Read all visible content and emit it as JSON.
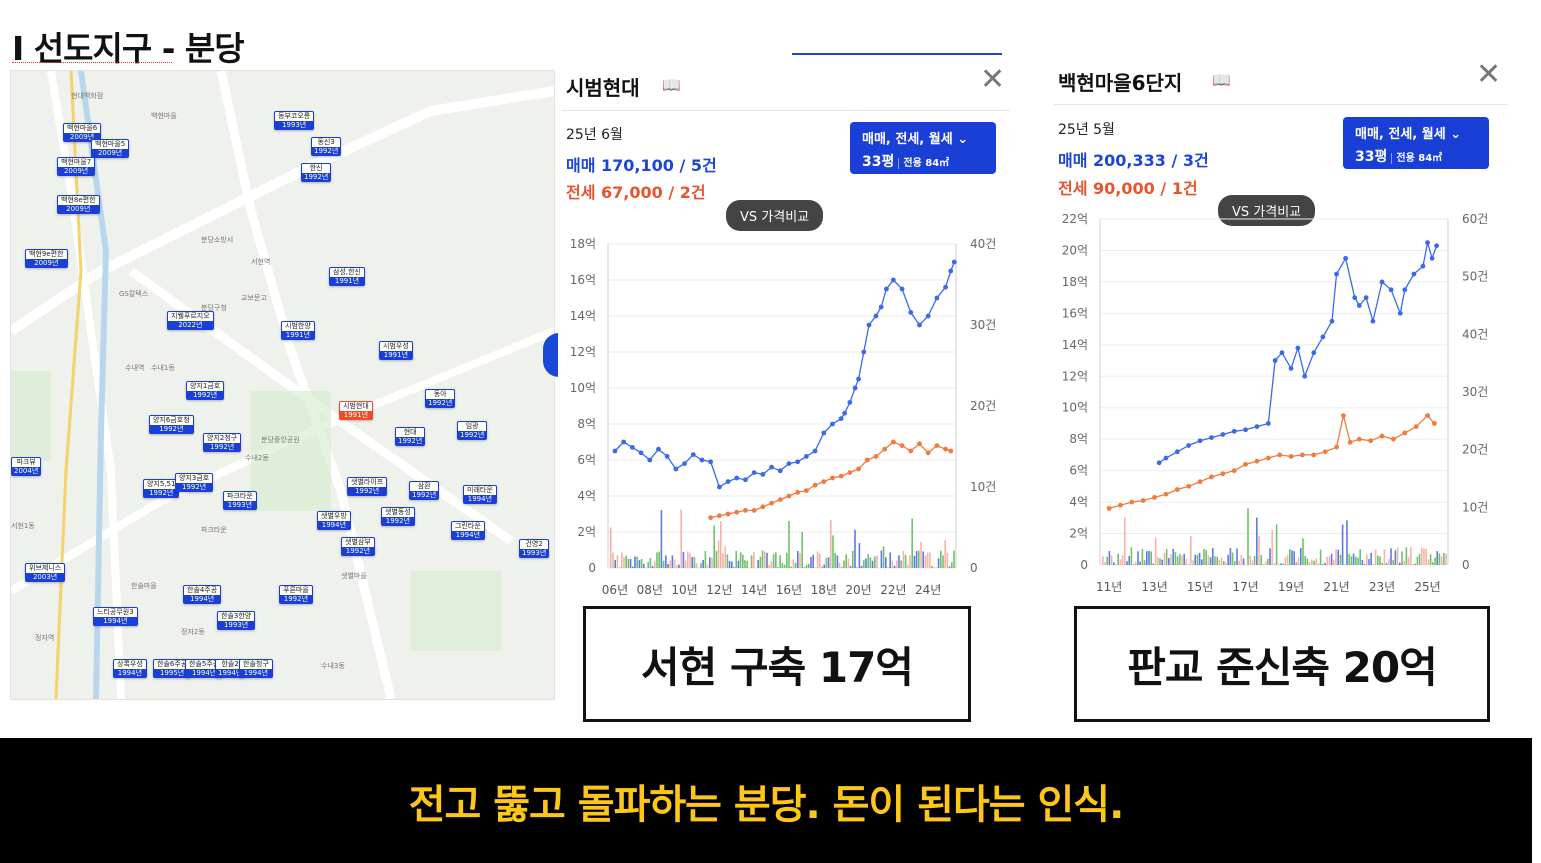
{
  "slide": {
    "title": "I 선도지구 - 분당",
    "banner": "전고 뚫고 돌파하는 분당. 돈이 된다는 인식."
  },
  "map": {
    "markers": [
      {
        "name": "백현마을6",
        "year": "2009년"
      },
      {
        "name": "백현마을5",
        "year": "2009년"
      },
      {
        "name": "백현마을7",
        "year": "2009년"
      },
      {
        "name": "백현8e편한",
        "year": "2009년"
      },
      {
        "name": "백현9e편한",
        "year": "2009년"
      },
      {
        "name": "동부코오롱",
        "year": "1993년"
      },
      {
        "name": "동신3",
        "year": "1992년"
      },
      {
        "name": "한신",
        "year": "1992년"
      },
      {
        "name": "삼성,한신",
        "year": "1991년"
      },
      {
        "name": "지웰푸르지오",
        "year": "2022년"
      },
      {
        "name": "시범한양",
        "year": "1991년"
      },
      {
        "name": "시범우성",
        "year": "1991년"
      },
      {
        "name": "양지1금호",
        "year": "1992년"
      },
      {
        "name": "양지6금호청",
        "year": "1992년"
      },
      {
        "name": "양지2청구",
        "year": "1992년"
      },
      {
        "name": "시범현대",
        "year": "1991년"
      },
      {
        "name": "동아",
        "year": "1992년"
      },
      {
        "name": "현대",
        "year": "1992년"
      },
      {
        "name": "임광",
        "year": "1992년"
      },
      {
        "name": "파크뷰",
        "year": "2004년"
      },
      {
        "name": "양지5,51",
        "year": "1992년"
      },
      {
        "name": "양지3금호",
        "year": "1992년"
      },
      {
        "name": "파크타운",
        "year": "1993년"
      },
      {
        "name": "샛별라이프",
        "year": "1992년"
      },
      {
        "name": "삼환",
        "year": "1992년"
      },
      {
        "name": "미래타운",
        "year": "1994년"
      },
      {
        "name": "샛별동성",
        "year": "1992년"
      },
      {
        "name": "샛별우방",
        "year": "1994년"
      },
      {
        "name": "샛별삼부",
        "year": "1992년"
      },
      {
        "name": "그린타운",
        "year": "1994년"
      },
      {
        "name": "건영2",
        "year": "1993년"
      },
      {
        "name": "위브제니스",
        "year": "2003년"
      },
      {
        "name": "한솔4주공",
        "year": "1994년"
      },
      {
        "name": "푸른마을",
        "year": "1992년"
      },
      {
        "name": "느티공무원3",
        "year": "1994년"
      },
      {
        "name": "한솔3한양",
        "year": "1993년"
      },
      {
        "name": "상록우성",
        "year": "1994년"
      },
      {
        "name": "한솔6주공",
        "year": "1995년"
      },
      {
        "name": "한솔5주공",
        "year": "1994년"
      },
      {
        "name": "한솔2",
        "year": "1994년"
      },
      {
        "name": "한솔청구",
        "year": "1994년"
      }
    ],
    "labels": [
      "현대백화점",
      "백현마을",
      "서현역",
      "교보문고",
      "분당구청",
      "수내1동",
      "수내역",
      "분당중앙공원",
      "수내2동",
      "한솔마을",
      "정자2동",
      "정자역",
      "수내3동",
      "분당소방서",
      "GS칼텍스",
      "파크타운",
      "샛별마을",
      "서현1동"
    ]
  },
  "left_panel": {
    "title": "시범현대",
    "date": "25년 6월",
    "sale": "매매 170,100 / 5건",
    "rent": "전세 67,000 / 2건",
    "filter_line1": "매매, 전세, 월세",
    "filter_size": "33평",
    "filter_area": "전용 84㎡",
    "vs_label": "VS 가격비교",
    "caption": "서현 구축 17억"
  },
  "right_panel": {
    "title": "백현마을6단지",
    "date": "25년 5월",
    "sale": "매매 200,333 / 3건",
    "rent": "전세 90,000 / 1건",
    "filter_line1": "매매, 전세, 월세",
    "filter_size": "33평",
    "filter_area": "전용 84㎡",
    "vs_label": "VS 가격비교",
    "caption": "판교 준신축 20억"
  },
  "colors": {
    "sale": "#3a6ae8",
    "rent": "#f27a3c",
    "volume_sale": "#2a4fd6",
    "volume_rent": "#f29a8a",
    "volume_month": "#3fae3a",
    "accent": "#1a3fd6",
    "banner_text": "#ffc61a"
  },
  "chart_data": [
    {
      "type": "line",
      "title": "",
      "x_ticks": [
        "06년",
        "08년",
        "10년",
        "12년",
        "14년",
        "16년",
        "18년",
        "20년",
        "22년",
        "24년"
      ],
      "x_range": [
        2005.6,
        2025.6
      ],
      "y_ticks": [
        "18억",
        "16억",
        "14억",
        "12억",
        "10억",
        "8억",
        "6억",
        "4억",
        "2억",
        "0"
      ],
      "ylim": [
        0,
        18
      ],
      "y2_ticks": [
        "40건",
        "30건",
        "20건",
        "10건",
        "0"
      ],
      "y2lim": [
        0,
        40
      ],
      "series": [
        {
          "name": "매매",
          "x": [
            2006,
            2006.5,
            2007,
            2007.5,
            2008,
            2008.5,
            2009,
            2009.5,
            2010,
            2010.5,
            2011,
            2011.5,
            2012,
            2012.5,
            2013,
            2013.5,
            2014,
            2014.5,
            2015,
            2015.5,
            2016,
            2016.5,
            2017,
            2017.5,
            2018,
            2018.5,
            2019,
            2019.2,
            2019.5,
            2019.8,
            2020,
            2020.3,
            2020.6,
            2021,
            2021.3,
            2021.6,
            2022,
            2022.5,
            2023,
            2023.5,
            2024,
            2024.5,
            2025,
            2025.3,
            2025.5
          ],
          "y": [
            6.5,
            7,
            6.7,
            6.4,
            6.0,
            6.6,
            6.2,
            5.5,
            5.8,
            6.3,
            6.0,
            5.9,
            4.5,
            4.8,
            5.0,
            4.9,
            5.3,
            5.2,
            5.6,
            5.4,
            5.8,
            5.9,
            6.2,
            6.5,
            7.5,
            8.0,
            8.3,
            8.6,
            9.2,
            10.0,
            10.5,
            12.0,
            13.5,
            14.0,
            14.5,
            15.5,
            16.0,
            15.5,
            14.2,
            13.5,
            14.0,
            15.0,
            15.6,
            16.5,
            17.0
          ]
        },
        {
          "name": "전세",
          "x": [
            2011.5,
            2012,
            2012.5,
            2013,
            2013.5,
            2014,
            2014.5,
            2015,
            2015.5,
            2016,
            2016.5,
            2017,
            2017.5,
            2018,
            2018.5,
            2019,
            2019.5,
            2020,
            2020.5,
            2021,
            2021.5,
            2022,
            2022.5,
            2023,
            2023.5,
            2024,
            2024.5,
            2025,
            2025.3
          ],
          "y": [
            2.8,
            2.9,
            3.0,
            3.1,
            3.2,
            3.2,
            3.4,
            3.6,
            3.8,
            4.0,
            4.2,
            4.3,
            4.6,
            4.8,
            5.0,
            5.1,
            5.3,
            5.5,
            6.0,
            6.2,
            6.6,
            7.0,
            6.8,
            6.5,
            6.9,
            6.4,
            6.8,
            6.6,
            6.5
          ]
        }
      ]
    },
    {
      "type": "line",
      "title": "",
      "x_ticks": [
        "11년",
        "13년",
        "15년",
        "17년",
        "19년",
        "21년",
        "23년",
        "25년"
      ],
      "x_range": [
        2010.6,
        2025.9
      ],
      "y_ticks": [
        "22억",
        "20억",
        "18억",
        "16억",
        "14억",
        "12억",
        "10억",
        "8억",
        "6억",
        "4억",
        "2억",
        "0"
      ],
      "ylim": [
        0,
        22
      ],
      "y2_ticks": [
        "60건",
        "50건",
        "40건",
        "30건",
        "20건",
        "10건",
        "0"
      ],
      "y2lim": [
        0,
        60
      ],
      "series": [
        {
          "name": "매매",
          "x": [
            2013.2,
            2013.5,
            2014,
            2014.5,
            2015,
            2015.5,
            2016,
            2016.5,
            2017,
            2017.5,
            2018,
            2018.3,
            2018.6,
            2019,
            2019.3,
            2019.6,
            2020,
            2020.4,
            2020.8,
            2021,
            2021.4,
            2021.8,
            2022,
            2022.3,
            2022.6,
            2023,
            2023.4,
            2023.8,
            2024,
            2024.4,
            2024.8,
            2025,
            2025.2,
            2025.4
          ],
          "y": [
            6.5,
            6.8,
            7.2,
            7.6,
            7.9,
            8.1,
            8.3,
            8.5,
            8.6,
            8.8,
            9.0,
            13.0,
            13.5,
            12.5,
            13.8,
            12.0,
            13.5,
            14.5,
            15.5,
            18.5,
            19.5,
            17.0,
            16.5,
            17.0,
            15.5,
            18.0,
            17.5,
            16.0,
            17.5,
            18.5,
            19.0,
            20.5,
            19.5,
            20.3
          ]
        },
        {
          "name": "전세",
          "x": [
            2011,
            2011.5,
            2012,
            2012.5,
            2013,
            2013.5,
            2014,
            2014.5,
            2015,
            2015.5,
            2016,
            2016.5,
            2017,
            2017.5,
            2018,
            2018.5,
            2019,
            2019.5,
            2020,
            2020.5,
            2021,
            2021.3,
            2021.6,
            2022,
            2022.5,
            2023,
            2023.5,
            2024,
            2024.5,
            2025,
            2025.3
          ],
          "y": [
            3.6,
            3.8,
            4.0,
            4.1,
            4.3,
            4.5,
            4.8,
            5.0,
            5.3,
            5.6,
            5.8,
            6.0,
            6.4,
            6.6,
            6.8,
            7.0,
            6.9,
            7.0,
            7.0,
            7.2,
            7.5,
            9.5,
            7.8,
            8.0,
            7.9,
            8.2,
            8.0,
            8.4,
            8.8,
            9.5,
            9.0
          ]
        }
      ]
    }
  ]
}
